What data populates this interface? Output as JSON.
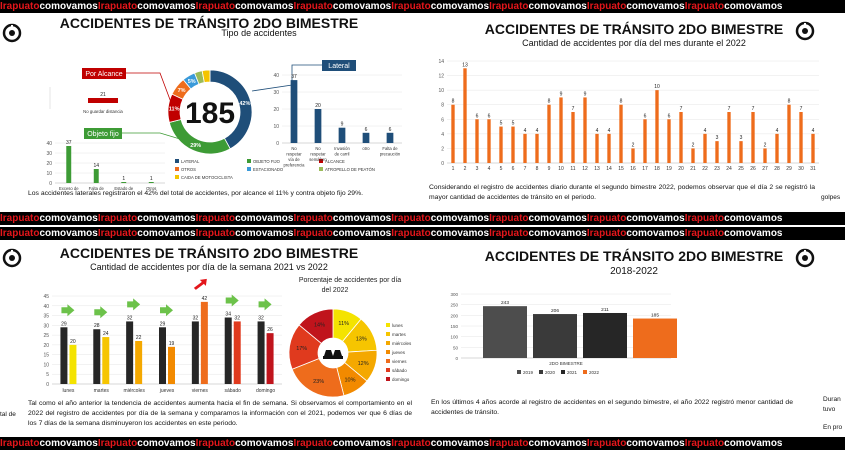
{
  "banner": {
    "pieces": [
      "Irapuato",
      "comovamos",
      "Irapuato",
      "comovamos",
      "Irapuato",
      "comovamos",
      "Irapuato",
      "comovamos",
      "Irapuato",
      "comovamos",
      "Irapuato",
      "comovamos",
      "Irapuato",
      "comovamos",
      "Irapuato",
      "comovamos"
    ]
  },
  "colors": {
    "orange": "#ee6c1c",
    "navy": "#1f4e79",
    "green": "#3d9b35",
    "red": "#c00000",
    "dark": "#262626",
    "yellow": "#f4c400"
  },
  "panel1": {
    "title": "ACCIDENTES DE TRÁNSITO 2DO BIMESTRE",
    "subtitle": "Tipo de accidentes",
    "total": "185",
    "tags": {
      "alcance": "Por Alcance",
      "lateral": "Lateral",
      "fijo": "Objeto fijo"
    },
    "caption": "Los accidentes laterales registraron el 42% del total de accidentes, por alcance el 11% y contra objeto fijo 29%."
  },
  "panel2": {
    "title": "ACCIDENTES DE TRÁNSITO 2DO BIMESTRE",
    "subtitle": "Cantidad de accidentes por día del mes durante el 2022",
    "caption": "Considerando el registro de accidentes diario durante el segundo bimestre 2022, podemos observar que el día 2 se registró la mayor cantidad de accidentes de tránsito en el periodo.",
    "edge_right": "golpes"
  },
  "panel3": {
    "title": "ACCIDENTES DE TRÁNSITO 2DO BIMESTRE",
    "subtitle": "Cantidad de accidentes por día de la semana 2021 vs 2022",
    "pie_title_1": "Porcentaje de accidentes por día",
    "pie_title_2": "del 2022",
    "caption": "Tal como el año anterior la tendencia de accidentes aumenta hacia el fin de semana.  Si observamos el comportamiento en el 2022 del registro de accidentes por día de la semana y comparamos la información con el 2021, podemos ver que 6 días de los 7 días de la semana disminuyeron los accidentes en este periodo.",
    "edge_left": "tal de"
  },
  "panel4": {
    "title": "ACCIDENTES DE TRÁNSITO 2DO BIMESTRE",
    "subtitle": "2018-2022",
    "caption": "En los últimos 4 años acorde al registro de accidentes en el segundo bimestre, el año 2022 registró menor cantidad de accidentes de tránsito.",
    "edge_right_1": "Duran",
    "edge_right_2": "tuvo",
    "edge_right_3": "En pro"
  },
  "chart_data": [
    {
      "type": "pie",
      "title": "Tipo de accidentes",
      "total": 185,
      "slices": [
        {
          "name": "LATERAL",
          "percent": 42
        },
        {
          "name": "OBJETO FIJO",
          "percent": 29
        },
        {
          "name": "ALCANCE",
          "percent": 11
        },
        {
          "name": "OTROS",
          "percent": 7
        },
        {
          "name": "ESTACIONADO",
          "percent": 5
        },
        {
          "name": "ATROPELLO DE PEATÓN",
          "percent": 3
        },
        {
          "name": "CAIDA DE MOTOCICLISTA",
          "percent": 3
        }
      ],
      "visible_slice_labels": [
        "42%",
        "29%",
        "11%",
        "7%",
        "5%"
      ]
    },
    {
      "type": "bar",
      "title": "Lateral",
      "categories": [
        "No respetar vía de preferencia",
        "No respetar semáforo",
        "Invasión de carril",
        "otro",
        "Falta de precaución"
      ],
      "values": [
        37,
        20,
        9,
        6,
        6
      ],
      "ylim": [
        0,
        40
      ],
      "yticks": [
        0,
        10,
        20,
        30,
        40
      ]
    },
    {
      "type": "bar",
      "title": "Por Alcance",
      "categories": [
        "No guardar distancia"
      ],
      "values": [
        21
      ]
    },
    {
      "type": "bar",
      "title": "Objeto fijo",
      "categories": [
        "Exceso de velocidad",
        "Falta de precaución",
        "Estado de ebriedad",
        "Otros"
      ],
      "values": [
        37,
        14,
        1,
        1
      ],
      "ylim": [
        0,
        40
      ],
      "yticks": [
        0,
        10,
        20,
        30,
        40
      ]
    },
    {
      "type": "bar",
      "title": "Cantidad de accidentes por día del mes durante el 2022",
      "categories": [
        "1",
        "2",
        "3",
        "4",
        "5",
        "6",
        "7",
        "8",
        "9",
        "10",
        "11",
        "12",
        "13",
        "14",
        "15",
        "16",
        "17",
        "18",
        "19",
        "20",
        "21",
        "22",
        "23",
        "24",
        "25",
        "26",
        "27",
        "28",
        "29",
        "30",
        "31"
      ],
      "values": [
        8,
        13,
        6,
        6,
        5,
        5,
        4,
        4,
        8,
        9,
        7,
        9,
        4,
        4,
        8,
        2,
        6,
        10,
        6,
        7,
        2,
        4,
        3,
        7,
        3,
        7,
        2,
        4,
        8,
        7,
        4
      ],
      "ylim": [
        0,
        14
      ],
      "yticks": [
        0,
        2,
        4,
        6,
        8,
        10,
        12,
        14
      ]
    },
    {
      "type": "bar",
      "title": "Cantidad de accidentes por día de la semana 2021 vs 2022",
      "categories": [
        "lunes",
        "martes",
        "miércoles",
        "jueves",
        "viernes",
        "sábado",
        "domingo"
      ],
      "series": [
        {
          "name": "2021",
          "values": [
            29,
            28,
            32,
            29,
            32,
            34,
            32
          ]
        },
        {
          "name": "2022",
          "values": [
            20,
            24,
            22,
            19,
            42,
            32,
            26
          ]
        }
      ],
      "ylim": [
        0,
        45
      ],
      "yticks": [
        0,
        5,
        10,
        15,
        20,
        25,
        30,
        35,
        40,
        45
      ]
    },
    {
      "type": "pie",
      "title": "Porcentaje de accidentes por día del 2022",
      "slices": [
        {
          "name": "lunes",
          "percent": 11
        },
        {
          "name": "martes",
          "percent": 13
        },
        {
          "name": "miércoles",
          "percent": 12
        },
        {
          "name": "jueves",
          "percent": 10
        },
        {
          "name": "viernes",
          "percent": 23
        },
        {
          "name": "sábado",
          "percent": 17
        },
        {
          "name": "domingo",
          "percent": 14
        }
      ]
    },
    {
      "type": "bar",
      "title": "2018-2022",
      "xlabel": "2DO BIMESTRE",
      "categories": [
        "2019",
        "2020",
        "2021",
        "2022"
      ],
      "values": [
        243,
        206,
        211,
        185
      ],
      "ylim": [
        0,
        300
      ],
      "yticks": [
        0,
        50,
        100,
        150,
        200,
        250,
        300
      ]
    }
  ]
}
